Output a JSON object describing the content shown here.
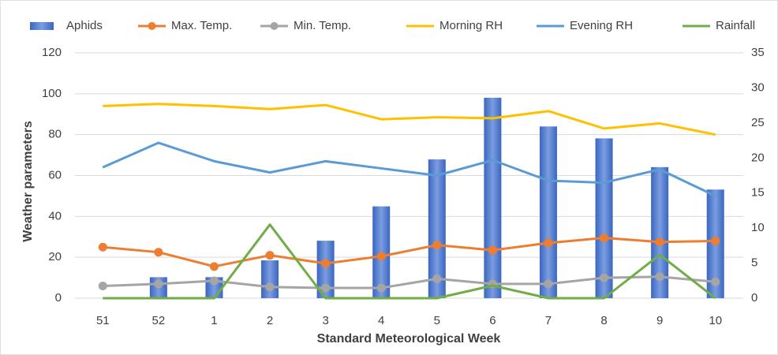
{
  "chart_data": {
    "type": "combo",
    "x_label": "Standard Meteorological Week",
    "y_label": "Weather parameters",
    "categories": [
      "51",
      "52",
      "1",
      "2",
      "3",
      "4",
      "5",
      "6",
      "7",
      "8",
      "9",
      "10"
    ],
    "ylim": [
      0,
      120
    ],
    "yticks": [
      0,
      20,
      40,
      60,
      80,
      100,
      120
    ],
    "y2lim": [
      0,
      35
    ],
    "y2ticks": [
      0,
      5,
      10,
      15,
      20,
      25,
      30,
      35
    ],
    "grid": true,
    "legend": "top",
    "series": [
      {
        "name": "Aphids",
        "type": "bar",
        "axis": "y2",
        "color": "#4472c4",
        "values": [
          0,
          3,
          3,
          5.4,
          8.2,
          13.1,
          19.8,
          28.6,
          24.5,
          22.8,
          18.7,
          15.5
        ]
      },
      {
        "name": "Max. Temp.",
        "type": "line",
        "marker": "circle",
        "color": "#ed7d31",
        "values": [
          25,
          22.5,
          15.5,
          21,
          17,
          20.5,
          26,
          23.5,
          27,
          29.5,
          27.5,
          28
        ]
      },
      {
        "name": "Min. Temp.",
        "type": "line",
        "marker": "circle",
        "color": "#a5a5a5",
        "values": [
          6,
          7,
          8.5,
          5.5,
          5,
          5,
          9.5,
          7,
          7,
          10,
          10.5,
          8
        ]
      },
      {
        "name": "Morning RH",
        "type": "line",
        "color": "#ffc000",
        "values": [
          94,
          95,
          94,
          92.5,
          94.5,
          87.5,
          88.5,
          88,
          91.5,
          83,
          85.5,
          80
        ]
      },
      {
        "name": "Evening RH",
        "type": "line",
        "color": "#5b9bd5",
        "values": [
          64,
          76,
          67,
          61.5,
          67,
          63.5,
          60,
          67.5,
          57.5,
          56.5,
          63,
          50
        ]
      },
      {
        "name": "Rainfall",
        "type": "line",
        "axis": "y2",
        "color": "#70ad47",
        "values": [
          0,
          0,
          0,
          10.5,
          0,
          0,
          0,
          1.8,
          0,
          0,
          6.2,
          0
        ]
      }
    ]
  }
}
